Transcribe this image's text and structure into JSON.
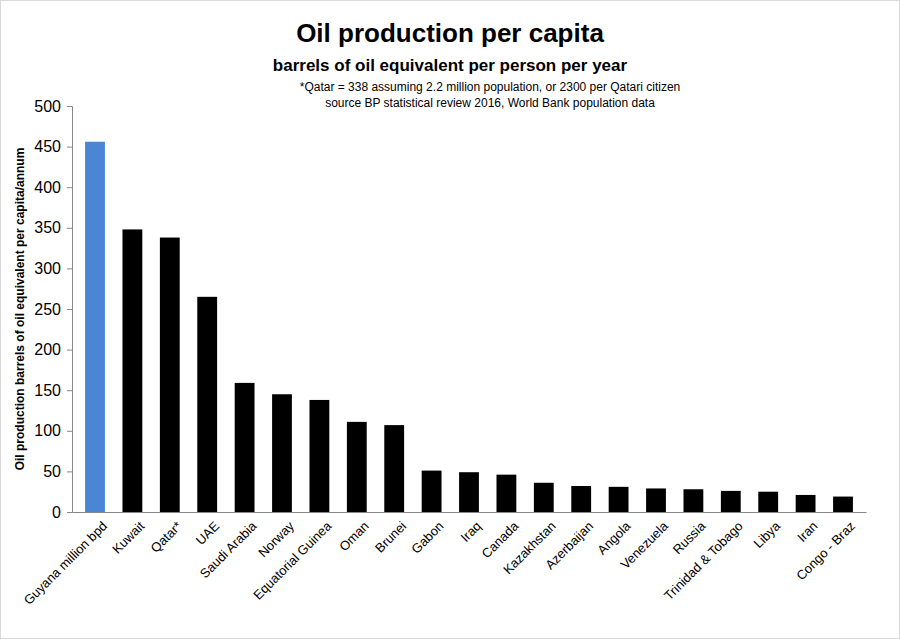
{
  "chart_data": {
    "type": "bar",
    "title": "Oil production per capita",
    "subtitle": "barrels of oil equivalent per person per year",
    "annotations": [
      "*Qatar = 338 assuming 2.2 million population, or 2300 per Qatari citizen",
      "source BP statistical review 2016, World Bank population data"
    ],
    "y_label": "Oil production barrels of oil equivalent per capita/annum",
    "categories": [
      "Guyana million bpd",
      "Kuwait",
      "Qatar*",
      "UAE",
      "Saudi Arabia",
      "Norway",
      "Equatorial Guinea",
      "Oman",
      "Brunei",
      "Gabon",
      "Iraq",
      "Canada",
      "Kazakhstan",
      "Azerbaijan",
      "Angola",
      "Venezuela",
      "Russia",
      "Trinidad & Tobago",
      "Libya",
      "Iran",
      "Congo - Braz"
    ],
    "values": [
      456,
      348,
      338,
      265,
      159,
      145,
      138,
      111,
      107,
      51,
      49,
      46,
      36,
      32,
      31,
      29,
      28,
      26,
      25,
      21,
      19
    ],
    "colors": [
      "#4a86d4",
      "#000000",
      "#000000",
      "#000000",
      "#000000",
      "#000000",
      "#000000",
      "#000000",
      "#000000",
      "#000000",
      "#000000",
      "#000000",
      "#000000",
      "#000000",
      "#000000",
      "#000000",
      "#000000",
      "#000000",
      "#000000",
      "#000000",
      "#000000"
    ],
    "ylim": [
      0,
      500
    ],
    "yticks": [
      0,
      50,
      100,
      150,
      200,
      250,
      300,
      350,
      400,
      450,
      500
    ],
    "grid": false
  }
}
